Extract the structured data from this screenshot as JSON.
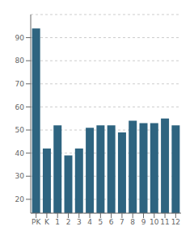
{
  "chart_data": {
    "type": "bar",
    "categories": [
      "PK",
      "K",
      "1",
      "2",
      "3",
      "4",
      "5",
      "6",
      "7",
      "8",
      "9",
      "10",
      "11",
      "12"
    ],
    "values": [
      94,
      42,
      52,
      39,
      42,
      51,
      52,
      52,
      49,
      54,
      53,
      53,
      55,
      52
    ],
    "color": "#2e6480",
    "ylim": [
      14,
      100
    ],
    "yticks": [
      20,
      30,
      40,
      50,
      60,
      70,
      80,
      90
    ],
    "grid": true
  }
}
